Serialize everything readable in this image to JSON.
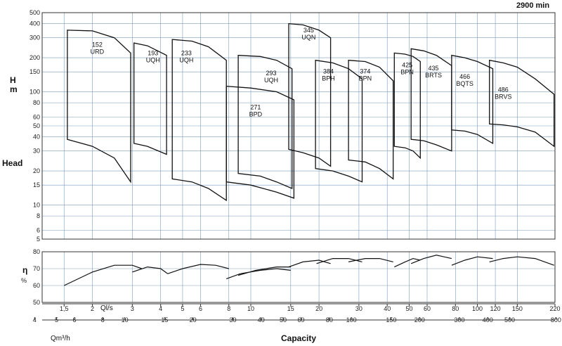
{
  "chart_data": {
    "type": "line",
    "speed_label": "2900 min",
    "head_axis": {
      "label": "Head",
      "unit_letters": [
        "H",
        "m"
      ],
      "scale": "log",
      "range": [
        5,
        500
      ],
      "ticks": [
        5,
        6,
        8,
        10,
        15,
        20,
        30,
        40,
        50,
        60,
        80,
        100,
        150,
        200,
        300,
        400,
        500
      ],
      "tick_labels": [
        "5",
        "6",
        "8",
        "10",
        "15",
        "20",
        "30",
        "40",
        "50",
        "60",
        "80",
        "100",
        "150",
        "200",
        "300",
        "400",
        "500"
      ]
    },
    "eff_axis": {
      "label": "η",
      "unit": "%",
      "range": [
        50,
        80
      ],
      "ticks": [
        50,
        60,
        70,
        80
      ],
      "tick_labels": [
        "50",
        "60",
        "70",
        "80"
      ]
    },
    "flow_axis_ls": {
      "label": "Ql/s",
      "scale": "log",
      "ticks": [
        1.5,
        2,
        3,
        4,
        5,
        6,
        8,
        10,
        15,
        20,
        30,
        40,
        50,
        60,
        80,
        100,
        120,
        150,
        220
      ],
      "tick_labels": [
        "1,5",
        "2",
        "3",
        "4",
        "5",
        "6",
        "8",
        "10",
        "15",
        "20",
        "30",
        "40",
        "50",
        "60",
        "80",
        "100",
        "120",
        "150",
        "220"
      ]
    },
    "flow_axis_m3h": {
      "label": "Qm³/h",
      "ticks": [
        4,
        5,
        6,
        8,
        10,
        15,
        20,
        30,
        40,
        50,
        60,
        80,
        100,
        150,
        200,
        300,
        400,
        500,
        800
      ],
      "tick_labels": [
        "4",
        "5",
        "6",
        "8",
        "10",
        "15",
        "20",
        "30",
        "40",
        "50",
        "60",
        "80",
        "100",
        "150",
        "200",
        "300",
        "400",
        "500",
        "800"
      ]
    },
    "xlabel": "Capacity",
    "grid": true,
    "series": [
      {
        "name": "152 URD",
        "label_lines": [
          "152",
          "URD"
        ],
        "label_at": [
          2.1,
          250
        ],
        "q_min": 1.55,
        "q_max": 2.95,
        "top": [
          [
            1.55,
            350
          ],
          [
            2.0,
            345
          ],
          [
            2.5,
            300
          ],
          [
            2.95,
            220
          ]
        ],
        "bottom": [
          [
            1.55,
            38
          ],
          [
            2.0,
            33
          ],
          [
            2.5,
            26
          ],
          [
            2.95,
            16
          ]
        ],
        "eff": [
          [
            1.5,
            60
          ],
          [
            2.0,
            68
          ],
          [
            2.5,
            72
          ],
          [
            3.0,
            72
          ],
          [
            3.3,
            70
          ]
        ]
      },
      {
        "name": "193 UQH",
        "label_lines": [
          "193",
          "UQH"
        ],
        "label_at": [
          3.7,
          210
        ],
        "q_min": 3.05,
        "q_max": 4.25,
        "top": [
          [
            3.05,
            270
          ],
          [
            3.5,
            255
          ],
          [
            4.25,
            210
          ]
        ],
        "bottom": [
          [
            3.05,
            35
          ],
          [
            3.5,
            33
          ],
          [
            4.25,
            28
          ]
        ],
        "eff": [
          [
            3.0,
            68
          ],
          [
            3.5,
            71
          ],
          [
            4.0,
            70
          ],
          [
            4.3,
            67
          ]
        ]
      },
      {
        "name": "233 UQH",
        "label_lines": [
          "233",
          "UQH"
        ],
        "label_at": [
          5.2,
          210
        ],
        "q_min": 4.5,
        "q_max": 7.8,
        "top": [
          [
            4.5,
            290
          ],
          [
            5.5,
            280
          ],
          [
            6.5,
            250
          ],
          [
            7.8,
            190
          ]
        ],
        "bottom": [
          [
            4.5,
            17
          ],
          [
            5.5,
            16
          ],
          [
            6.5,
            14
          ],
          [
            7.8,
            11
          ]
        ],
        "eff": [
          [
            4.3,
            67
          ],
          [
            5.0,
            70
          ],
          [
            6.0,
            72.5
          ],
          [
            7.0,
            72
          ],
          [
            8.0,
            70
          ]
        ]
      },
      {
        "name": "271 BPD",
        "label_lines": [
          "271",
          "BPD"
        ],
        "label_at": [
          10.5,
          70
        ],
        "q_min": 7.8,
        "q_max": 15.5,
        "top": [
          [
            7.8,
            112
          ],
          [
            10,
            108
          ],
          [
            13,
            100
          ],
          [
            15.5,
            85
          ]
        ],
        "bottom": [
          [
            7.8,
            16
          ],
          [
            10,
            15
          ],
          [
            13,
            13
          ],
          [
            15.5,
            11.5
          ]
        ],
        "eff": [
          [
            7.8,
            64
          ],
          [
            9.0,
            67
          ],
          [
            11,
            69
          ],
          [
            13,
            70
          ],
          [
            15,
            69
          ]
        ]
      },
      {
        "name": "293 UQH",
        "label_lines": [
          "293",
          "UQH"
        ],
        "label_at": [
          12.3,
          140
        ],
        "q_min": 8.8,
        "q_max": 15.2,
        "top": [
          [
            8.8,
            210
          ],
          [
            11,
            205
          ],
          [
            13,
            190
          ],
          [
            15.2,
            160
          ]
        ],
        "bottom": [
          [
            8.8,
            19
          ],
          [
            11,
            18
          ],
          [
            13,
            16
          ],
          [
            15.2,
            14
          ]
        ],
        "eff": [
          [
            8.8,
            66
          ],
          [
            10.5,
            69
          ],
          [
            13,
            71
          ],
          [
            15,
            71
          ]
        ]
      },
      {
        "name": "345 UQN",
        "label_lines": [
          "345",
          "UQN"
        ],
        "label_at": [
          18,
          335
        ],
        "q_min": 14.7,
        "q_max": 22.5,
        "top": [
          [
            14.7,
            400
          ],
          [
            17,
            390
          ],
          [
            20,
            350
          ],
          [
            22.5,
            300
          ]
        ],
        "bottom": [
          [
            14.7,
            31
          ],
          [
            17,
            29
          ],
          [
            20,
            26
          ],
          [
            22.5,
            22
          ]
        ],
        "eff": [
          [
            14.7,
            71
          ],
          [
            17,
            74
          ],
          [
            20,
            75
          ],
          [
            22.5,
            73
          ]
        ]
      },
      {
        "name": "384 BPH",
        "label_lines": [
          "384",
          "BPH"
        ],
        "label_at": [
          22,
          145
        ],
        "q_min": 19.3,
        "q_max": 31,
        "top": [
          [
            19.3,
            190
          ],
          [
            23,
            180
          ],
          [
            27,
            160
          ],
          [
            31,
            130
          ]
        ],
        "bottom": [
          [
            19.3,
            21
          ],
          [
            23,
            20
          ],
          [
            27,
            18
          ],
          [
            31,
            16
          ]
        ],
        "eff": [
          [
            19.5,
            73
          ],
          [
            23,
            76
          ],
          [
            27,
            76
          ],
          [
            31,
            74
          ]
        ]
      },
      {
        "name": "374 BPN",
        "label_lines": [
          "374",
          "BPN"
        ],
        "label_at": [
          32,
          145
        ],
        "q_min": 27,
        "q_max": 42.5,
        "top": [
          [
            27,
            190
          ],
          [
            32,
            185
          ],
          [
            37,
            165
          ],
          [
            42.5,
            125
          ]
        ],
        "bottom": [
          [
            27,
            25
          ],
          [
            32,
            24
          ],
          [
            37,
            21
          ],
          [
            42.5,
            17
          ]
        ],
        "eff": [
          [
            27,
            74
          ],
          [
            32,
            76
          ],
          [
            37,
            76
          ],
          [
            42.5,
            74
          ]
        ]
      },
      {
        "name": "425 BPN",
        "label_lines": [
          "425",
          "BPN"
        ],
        "label_at": [
          49,
          165
        ],
        "q_min": 43,
        "q_max": 56,
        "top": [
          [
            43,
            220
          ],
          [
            48,
            215
          ],
          [
            52,
            205
          ],
          [
            56,
            185
          ]
        ],
        "bottom": [
          [
            43,
            33
          ],
          [
            48,
            32
          ],
          [
            52,
            30
          ],
          [
            56,
            26
          ]
        ],
        "eff": [
          [
            43,
            71
          ],
          [
            48,
            74
          ],
          [
            52,
            76
          ],
          [
            56,
            75
          ]
        ]
      },
      {
        "name": "435 BRTS",
        "label_lines": [
          "435",
          "BRTS"
        ],
        "label_at": [
          64,
          155
        ],
        "q_min": 51,
        "q_max": 77,
        "top": [
          [
            51,
            240
          ],
          [
            58,
            230
          ],
          [
            66,
            210
          ],
          [
            77,
            170
          ]
        ],
        "bottom": [
          [
            51,
            38
          ],
          [
            58,
            37
          ],
          [
            66,
            34
          ],
          [
            77,
            30
          ]
        ],
        "eff": [
          [
            51,
            73
          ],
          [
            58,
            76
          ],
          [
            66,
            78
          ],
          [
            77,
            76
          ]
        ]
      },
      {
        "name": "466 BQTS",
        "label_lines": [
          "466",
          "BQTS"
        ],
        "label_at": [
          88,
          130
        ],
        "q_min": 77,
        "q_max": 117,
        "top": [
          [
            77,
            210
          ],
          [
            88,
            200
          ],
          [
            100,
            185
          ],
          [
            117,
            160
          ]
        ],
        "bottom": [
          [
            77,
            46
          ],
          [
            88,
            45
          ],
          [
            100,
            42
          ],
          [
            117,
            35
          ]
        ],
        "eff": [
          [
            77,
            72
          ],
          [
            88,
            75
          ],
          [
            100,
            77
          ],
          [
            117,
            76
          ]
        ]
      },
      {
        "name": "486 BRVS",
        "label_lines": [
          "486",
          "BRVS"
        ],
        "label_at": [
          130,
          100
        ],
        "q_min": 113,
        "q_max": 218,
        "top": [
          [
            113,
            190
          ],
          [
            130,
            180
          ],
          [
            150,
            165
          ],
          [
            180,
            130
          ],
          [
            218,
            95
          ]
        ],
        "bottom": [
          [
            113,
            52
          ],
          [
            130,
            51
          ],
          [
            150,
            49
          ],
          [
            180,
            44
          ],
          [
            218,
            33
          ]
        ],
        "eff": [
          [
            113,
            74
          ],
          [
            130,
            76
          ],
          [
            150,
            77
          ],
          [
            180,
            76
          ],
          [
            218,
            72
          ]
        ]
      }
    ]
  }
}
